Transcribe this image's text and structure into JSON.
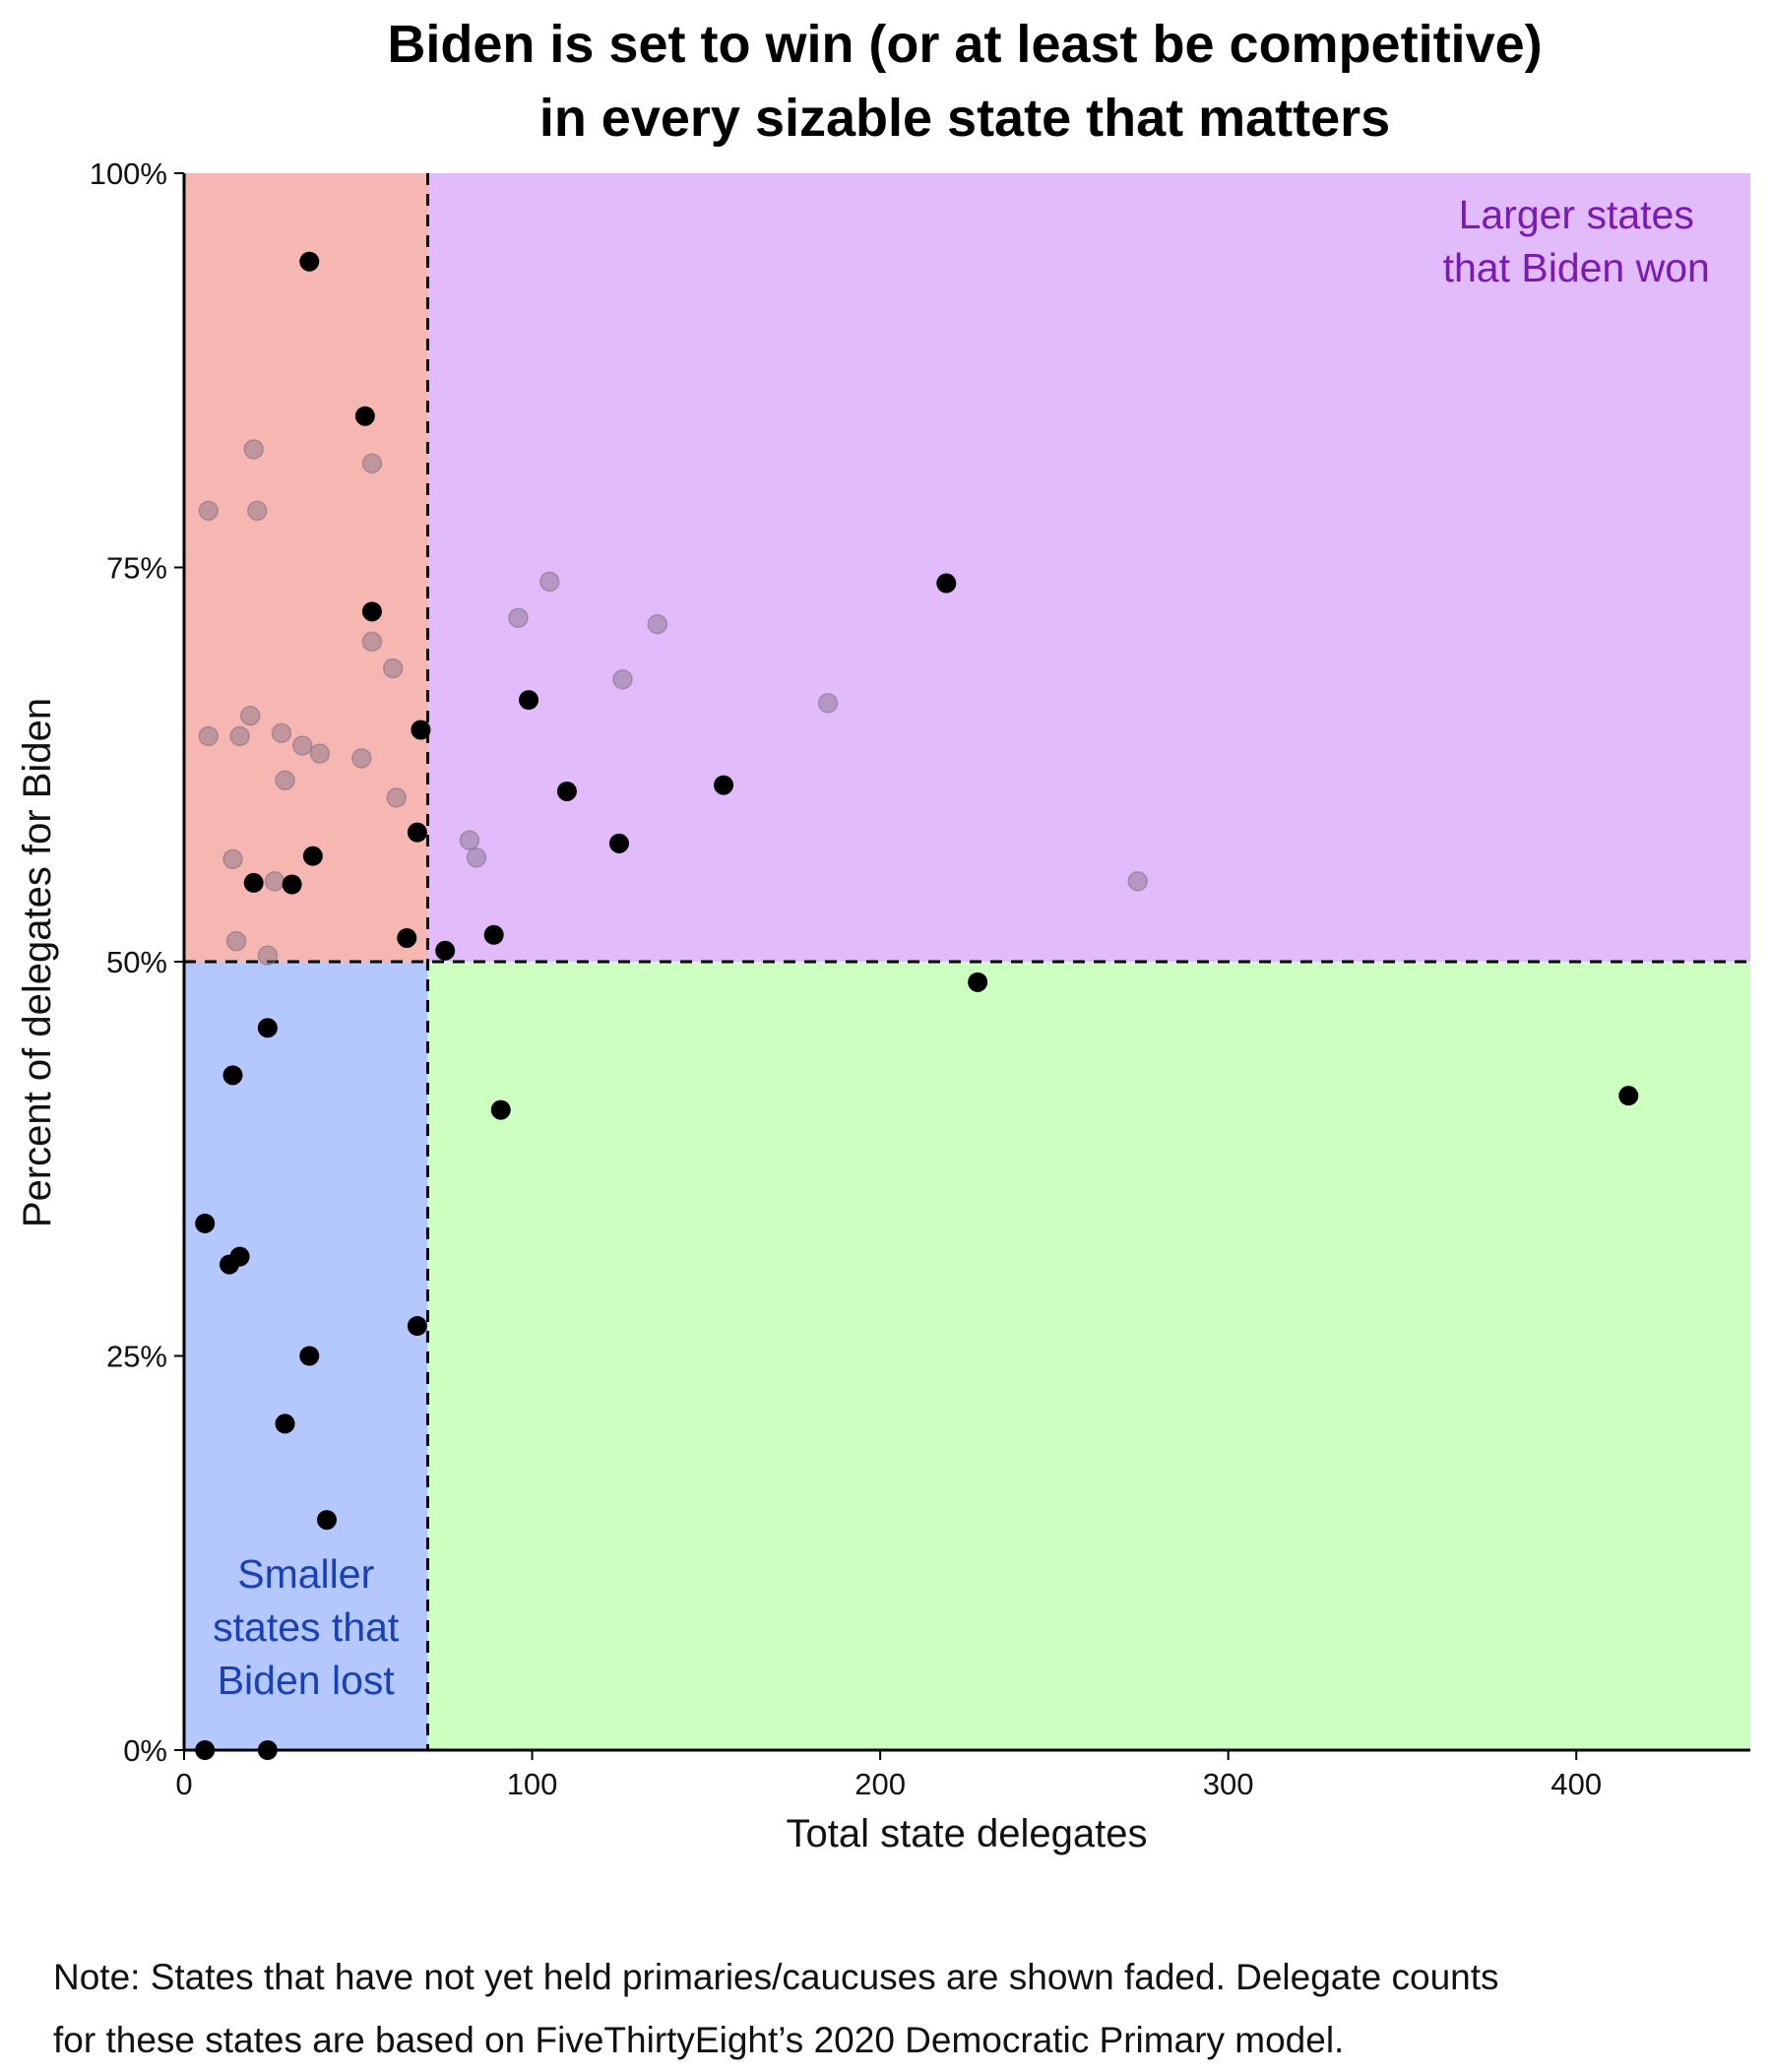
{
  "chart_data": {
    "type": "scatter",
    "title_lines": [
      "Biden is set to win (or at least be competitive)",
      "in every sizable state that matters"
    ],
    "xlabel": "Total state delegates",
    "ylabel": "Percent of delegates for Biden",
    "xlim": [
      0,
      450
    ],
    "ylim": [
      0,
      100
    ],
    "x_ticks": [
      0,
      100,
      200,
      300,
      400
    ],
    "x_tick_labels": [
      "0",
      "100",
      "200",
      "300",
      "400"
    ],
    "y_ticks": [
      0,
      25,
      50,
      75,
      100
    ],
    "y_tick_labels": [
      "0%",
      "25%",
      "50%",
      "75%",
      "100%"
    ],
    "thresholds": {
      "x": 70,
      "y": 50
    },
    "quadrants": [
      {
        "name": "small-above",
        "x_range": [
          0,
          70
        ],
        "y_range": [
          50,
          100
        ],
        "color": "#f6b6b2"
      },
      {
        "name": "large-above",
        "x_range": [
          70,
          450
        ],
        "y_range": [
          50,
          100
        ],
        "color": "#e1bbfa"
      },
      {
        "name": "small-below",
        "x_range": [
          0,
          70
        ],
        "y_range": [
          0,
          50
        ],
        "color": "#b4c8fe"
      },
      {
        "name": "large-below",
        "x_range": [
          70,
          450
        ],
        "y_range": [
          0,
          50
        ],
        "color": "#ccffc0"
      }
    ],
    "annotations": [
      {
        "lines": [
          "Larger states",
          "that Biden won"
        ],
        "x": 400,
        "y": 96.5,
        "color": "#7a1ab5"
      },
      {
        "lines": [
          "Smaller",
          "states that",
          "Biden lost"
        ],
        "x": 35,
        "y": 10.3,
        "color": "#1a40b5"
      }
    ],
    "note_lines": [
      "Note: States that have not yet held primaries/caucuses are shown faded. Delegate counts",
      "for these states are based on FiveThirtyEight’s 2020 Democratic Primary model."
    ],
    "points_held": [
      [
        36,
        94.4
      ],
      [
        52,
        84.6
      ],
      [
        54,
        72.2
      ],
      [
        68,
        64.7
      ],
      [
        99,
        66.6
      ],
      [
        67,
        58.2
      ],
      [
        37,
        56.7
      ],
      [
        20,
        55.0
      ],
      [
        31,
        54.9
      ],
      [
        110,
        60.8
      ],
      [
        155,
        61.2
      ],
      [
        125,
        57.5
      ],
      [
        64,
        51.5
      ],
      [
        75,
        50.7
      ],
      [
        89,
        51.7
      ],
      [
        219,
        74.0
      ],
      [
        228,
        48.7
      ],
      [
        24,
        45.8
      ],
      [
        14,
        42.8
      ],
      [
        91,
        40.6
      ],
      [
        415,
        41.5
      ],
      [
        6,
        33.4
      ],
      [
        13,
        30.8
      ],
      [
        16,
        31.3
      ],
      [
        67,
        26.9
      ],
      [
        36,
        25.0
      ],
      [
        29,
        20.7
      ],
      [
        41,
        14.6
      ],
      [
        6,
        0
      ],
      [
        24,
        0
      ]
    ],
    "points_upcoming": [
      [
        7,
        78.6
      ],
      [
        20,
        82.5
      ],
      [
        21,
        78.6
      ],
      [
        54,
        81.6
      ],
      [
        7,
        64.3
      ],
      [
        16,
        64.3
      ],
      [
        19,
        65.6
      ],
      [
        28,
        64.5
      ],
      [
        34,
        63.7
      ],
      [
        39,
        63.2
      ],
      [
        29,
        61.5
      ],
      [
        51,
        62.9
      ],
      [
        54,
        70.3
      ],
      [
        60,
        68.6
      ],
      [
        61,
        60.4
      ],
      [
        14,
        56.5
      ],
      [
        26,
        55.1
      ],
      [
        15,
        51.3
      ],
      [
        24,
        50.4
      ],
      [
        105,
        74.1
      ],
      [
        96,
        71.8
      ],
      [
        136,
        71.4
      ],
      [
        126,
        67.9
      ],
      [
        185,
        66.4
      ],
      [
        82,
        57.7
      ],
      [
        84,
        56.6
      ],
      [
        274,
        55.1
      ]
    ],
    "point_colors": {
      "held": "#000000",
      "upcoming": "#7f6f80"
    }
  }
}
